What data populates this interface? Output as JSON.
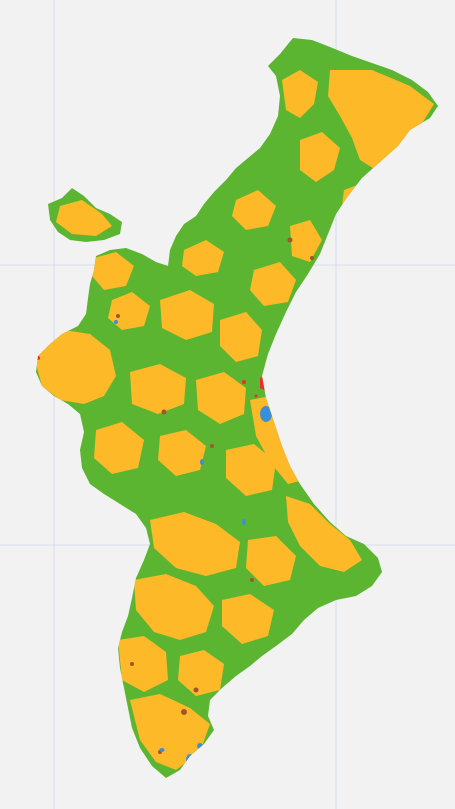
{
  "map": {
    "background_color": "#f2f2f2",
    "gridline_color": "#cfd6e6",
    "region_base_color": "#5cb531",
    "land_cover_classes": [
      {
        "key": "forest",
        "color": "#5cb531"
      },
      {
        "key": "agriculture",
        "color": "#fdb927"
      },
      {
        "key": "urban",
        "color": "#e8312b"
      },
      {
        "key": "water",
        "color": "#3a8fd9"
      },
      {
        "key": "wetland",
        "color": "#a0562c"
      }
    ]
  }
}
